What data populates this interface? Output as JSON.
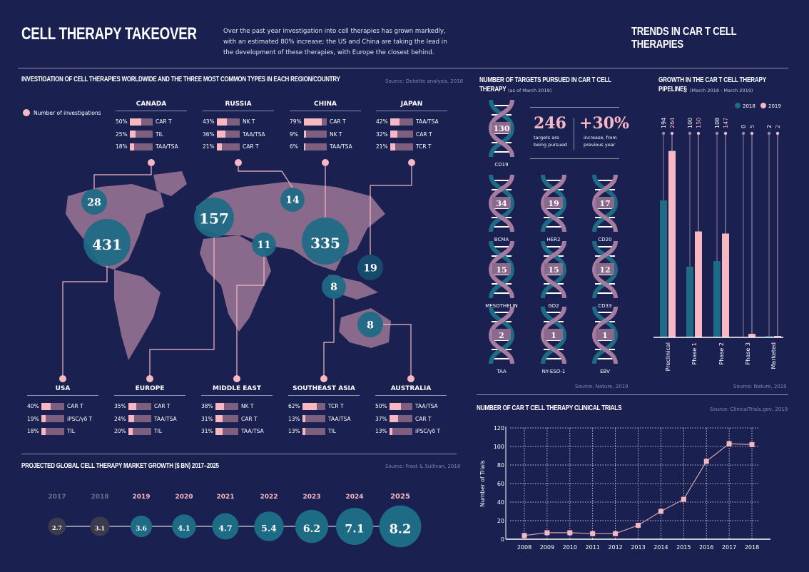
{
  "header": {
    "title": "CELL THERAPY TAKEOVER",
    "intro": "Over the past year investigation into cell therapies has grown markedly, with an estimated 80% increase; the US and China are taking the lead in the development of these therapies, with Europe the closest behind.",
    "right_title": "TRENDS IN CAR T CELL THERAPIES"
  },
  "colors": {
    "background": "#1a2150",
    "teal": "#1d6b85",
    "pink": "#f7b8c4",
    "mauve": "#8a6a8c"
  },
  "map_section": {
    "title": "INVESTIGATION OF CELL THERAPIES WORLDWIDE AND THE THREE MOST COMMON TYPES IN EACH REGION/COUNTRY",
    "source": "Source: Deloitte analysis, 2018",
    "legend": "Number of investigations",
    "regions_top": [
      {
        "name": "CANADA",
        "rows": [
          {
            "pct": "50%",
            "v": 50,
            "type": "CAR T"
          },
          {
            "pct": "25%",
            "v": 25,
            "type": "TIL"
          },
          {
            "pct": "18%",
            "v": 18,
            "type": "TAA/TSA"
          }
        ]
      },
      {
        "name": "RUSSIA",
        "rows": [
          {
            "pct": "43%",
            "v": 43,
            "type": "NK T"
          },
          {
            "pct": "36%",
            "v": 36,
            "type": "TAA/TSA"
          },
          {
            "pct": "21%",
            "v": 21,
            "type": "CAR T"
          }
        ]
      },
      {
        "name": "CHINA",
        "rows": [
          {
            "pct": "79%",
            "v": 79,
            "type": "CAR T"
          },
          {
            "pct": "9%",
            "v": 9,
            "type": "NK T"
          },
          {
            "pct": "6%",
            "v": 6,
            "type": "TAA/TSA"
          }
        ]
      },
      {
        "name": "JAPAN",
        "rows": [
          {
            "pct": "42%",
            "v": 42,
            "type": "TAA/TSA"
          },
          {
            "pct": "32%",
            "v": 32,
            "type": "CAR T"
          },
          {
            "pct": "21%",
            "v": 21,
            "type": "TCR T"
          }
        ]
      }
    ],
    "regions_bottom": [
      {
        "name": "USA",
        "rows": [
          {
            "pct": "40%",
            "v": 40,
            "type": "CAR T"
          },
          {
            "pct": "19%",
            "v": 19,
            "type": "iPSC/γδ T"
          },
          {
            "pct": "18%",
            "v": 18,
            "type": "TIL"
          }
        ]
      },
      {
        "name": "EUROPE",
        "rows": [
          {
            "pct": "35%",
            "v": 35,
            "type": "CAR T"
          },
          {
            "pct": "24%",
            "v": 24,
            "type": "TAA/TSA"
          },
          {
            "pct": "20%",
            "v": 20,
            "type": "TIL"
          }
        ]
      },
      {
        "name": "MIDDLE EAST",
        "rows": [
          {
            "pct": "38%",
            "v": 38,
            "type": "NK T"
          },
          {
            "pct": "31%",
            "v": 31,
            "type": "CAR T"
          },
          {
            "pct": "31%",
            "v": 31,
            "type": "TAA/TSA"
          }
        ]
      },
      {
        "name": "SOUTHEAST ASIA",
        "rows": [
          {
            "pct": "62%",
            "v": 62,
            "type": "TCR T"
          },
          {
            "pct": "13%",
            "v": 13,
            "type": "TAA/TSA"
          },
          {
            "pct": "13%",
            "v": 13,
            "type": "TIL"
          }
        ]
      },
      {
        "name": "AUSTRALIA",
        "rows": [
          {
            "pct": "50%",
            "v": 50,
            "type": "TAA/TSA"
          },
          {
            "pct": "37%",
            "v": 37,
            "type": "CAR T"
          },
          {
            "pct": "13%",
            "v": 13,
            "type": "iPSC/γδ T"
          }
        ]
      }
    ],
    "bubbles": [
      {
        "region": "CANADA",
        "value": "28"
      },
      {
        "region": "USA",
        "value": "431"
      },
      {
        "region": "EUROPE",
        "value": "157"
      },
      {
        "region": "RUSSIA",
        "value": "14"
      },
      {
        "region": "MIDDLE EAST",
        "value": "11"
      },
      {
        "region": "CHINA",
        "value": "335"
      },
      {
        "region": "JAPAN",
        "value": "19"
      },
      {
        "region": "SOUTHEAST ASIA",
        "value": "8"
      },
      {
        "region": "AUSTRALIA",
        "value": "8"
      }
    ]
  },
  "chart_data": [
    {
      "type": "bubble",
      "title": "PROJECTED GLOBAL CELL THERAPY MARKET GROWTH  ($ BN) 2017–2025",
      "source": "Source: Frost & Sullivan, 2018",
      "categories": [
        "2017",
        "2018",
        "2019",
        "2020",
        "2021",
        "2022",
        "2023",
        "2024",
        "2025"
      ],
      "values": [
        2.7,
        3.1,
        3.6,
        4.1,
        4.7,
        5.4,
        6.2,
        7.1,
        8.2
      ]
    },
    {
      "type": "pictograph",
      "title": "NUMBER OF TARGETS PURSUED IN CAR T CELL THERAPY",
      "subtitle": "(as of March 2019)",
      "source": "Source: Nature, 2019",
      "categories": [
        "CD19",
        "BCMA",
        "HER2",
        "CD20",
        "MESOTHELIN",
        "GD2",
        "CD33",
        "TAA",
        "NY-ESO-1",
        "EBV"
      ],
      "values": [
        130,
        34,
        19,
        17,
        15,
        15,
        12,
        2,
        1,
        1
      ],
      "stat1": {
        "value": "246",
        "label": "targets are being pursued"
      },
      "stat2": {
        "value": "+30%",
        "label": "increase, from previous year"
      }
    },
    {
      "type": "bar",
      "title": "GROWTH IN THE CAR T CELL THERAPY PIPELINE§",
      "subtitle": "(March 2018 - March 2019)",
      "source": "Source: Nature, 2019",
      "categories": [
        "Preclinical",
        "Phase 1",
        "Phase 2",
        "Phase 3",
        "Marketed"
      ],
      "series": [
        {
          "name": "2018",
          "values": [
            194,
            100,
            108,
            0,
            2
          ]
        },
        {
          "name": "2019",
          "values": [
            264,
            150,
            147,
            5,
            2
          ]
        }
      ],
      "legend": "top-right",
      "ylim": [
        0,
        264
      ]
    },
    {
      "type": "line",
      "title": "NUMBER OF CAR T CELL THERAPY CLINICAL TRIALS",
      "source": "Source: ClinicalTrials.gov, 2019",
      "ylabel": "Number of Trials",
      "x": [
        "2008",
        "2009",
        "2010",
        "2011",
        "2012",
        "2013",
        "2014",
        "2015",
        "2016",
        "2017",
        "2018"
      ],
      "values": [
        4,
        7,
        7,
        6,
        6,
        15,
        30,
        43,
        84,
        103,
        102
      ],
      "ylim": [
        0,
        120
      ],
      "yticks": [
        "0",
        "20",
        "40",
        "60",
        "80",
        "100",
        "120"
      ],
      "grid": true
    }
  ]
}
